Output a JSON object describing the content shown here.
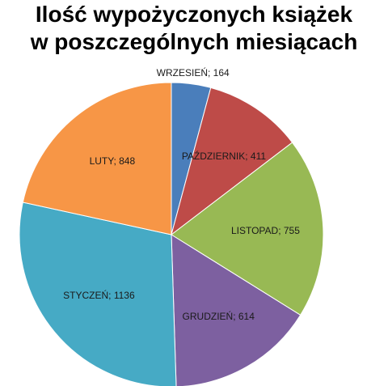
{
  "chart_data": {
    "type": "pie",
    "title": [
      "Ilość wypożyczonych książek",
      "w poszczególnych miesiącach"
    ],
    "categories": [
      "WRZESIEŃ",
      "PAŹDZIERNIK",
      "LISTOPAD",
      "GRUDZIEŃ",
      "STYCZEŃ",
      "LUTY"
    ],
    "values": [
      164,
      411,
      755,
      614,
      1136,
      848
    ],
    "value_labels": [
      "WRZESIEŃ; 164",
      "PAŹDZIERNIK; 411",
      "LISTOPAD; 755",
      "GRUDZIEŃ; 614",
      "STYCZEŃ; 1136",
      "LUTY; 848"
    ],
    "colors": [
      "#4a7ebb",
      "#be4b48",
      "#98b954",
      "#7d60a0",
      "#46aac5",
      "#f79646"
    ]
  }
}
